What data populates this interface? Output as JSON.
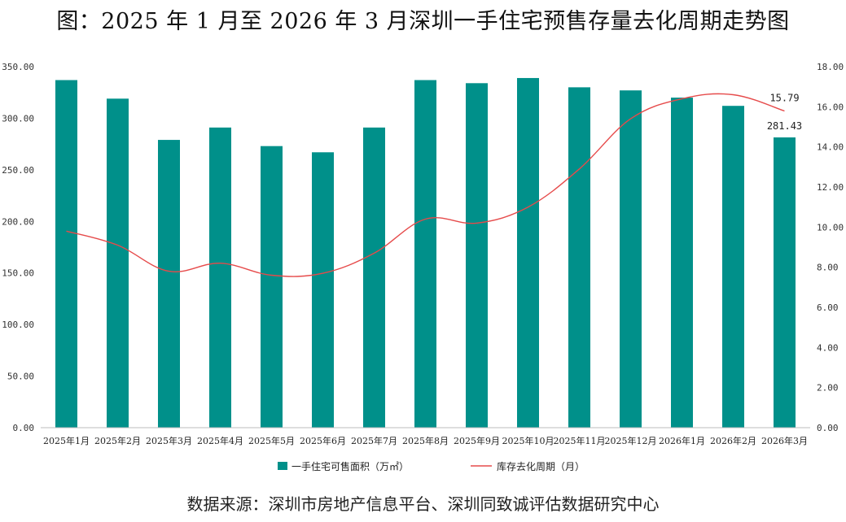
{
  "title": "图：2025 年 1 月至 2026 年 3 月深圳一手住宅预售存量去化周期走势图",
  "source": "数据来源：深圳市房地产信息平台、深圳同致诚评估数据研究中心",
  "colors": {
    "bar": "#00908a",
    "line": "#e64b4b",
    "axis": "#bdbdbd"
  },
  "chart_data": {
    "type": "bar",
    "categories": [
      "2025年1月",
      "2025年2月",
      "2025年3月",
      "2025年4月",
      "2025年5月",
      "2025年6月",
      "2025年7月",
      "2025年8月",
      "2025年9月",
      "2025年10月",
      "2025年11月",
      "2025年12月",
      "2026年1月",
      "2026年2月",
      "2026年3月"
    ],
    "series": [
      {
        "name": "一手住宅可售面积（万㎡）",
        "type": "bar",
        "axis": "left",
        "values": [
          337,
          319,
          279,
          291,
          273,
          267,
          291,
          337,
          334,
          339,
          330,
          327,
          320,
          312,
          281.43
        ]
      },
      {
        "name": "库存去化周期（月）",
        "type": "line",
        "axis": "right",
        "values": [
          9.8,
          9.1,
          7.8,
          8.2,
          7.6,
          7.7,
          8.7,
          10.4,
          10.2,
          11.0,
          12.9,
          15.4,
          16.4,
          16.6,
          15.79
        ]
      }
    ],
    "left_axis": {
      "ylim": [
        0,
        350
      ],
      "ticks": [
        "0.00",
        "50.00",
        "100.00",
        "150.00",
        "200.00",
        "250.00",
        "300.00",
        "350.00"
      ]
    },
    "right_axis": {
      "ylim": [
        0,
        18
      ],
      "ticks": [
        "0.00",
        "2.00",
        "4.00",
        "6.00",
        "8.00",
        "10.00",
        "12.00",
        "14.00",
        "16.00",
        "18.00"
      ]
    },
    "data_labels": {
      "bar_last": "281.43",
      "line_last": "15.79"
    },
    "legend_position": "bottom",
    "grid": false
  }
}
